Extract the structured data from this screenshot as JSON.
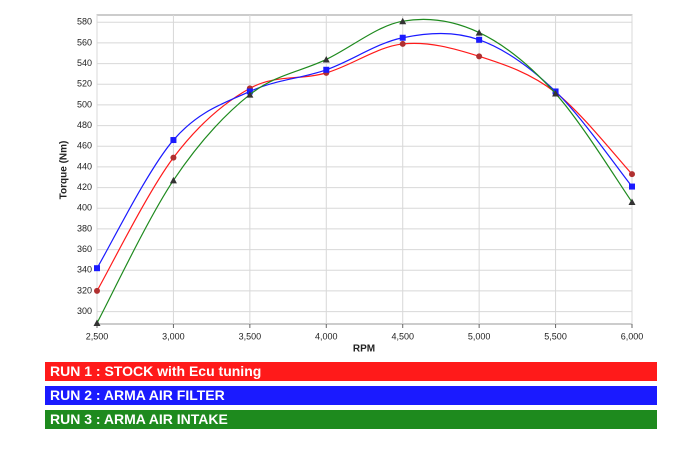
{
  "chart_data": {
    "type": "line",
    "x_label": "RPM",
    "y_label": "Torque (Nm)",
    "x": [
      2500,
      3000,
      3500,
      4000,
      4500,
      5000,
      5500,
      6000
    ],
    "series": [
      {
        "name": "RUN 1 : STOCK with Ecu tuning",
        "color": "#ff1a1a",
        "marker": "circle",
        "values": [
          320,
          449,
          516,
          531,
          559,
          547,
          512,
          433
        ]
      },
      {
        "name": "RUN 2 : ARMA AIR FILTER",
        "color": "#1a1aff",
        "marker": "square",
        "values": [
          342,
          466,
          513,
          534,
          565,
          563,
          513,
          421
        ]
      },
      {
        "name": "RUN 3 : ARMA AIR INTAKE",
        "color": "#1e8a1e",
        "marker": "triangle",
        "values": [
          289,
          427,
          510,
          544,
          581,
          570,
          511,
          406
        ]
      }
    ],
    "xlim": [
      2500,
      6000
    ],
    "xticks": [
      {
        "value": 2500,
        "label": "2,500"
      },
      {
        "value": 3000,
        "label": "3,000"
      },
      {
        "value": 3500,
        "label": "3,500"
      },
      {
        "value": 4000,
        "label": "4,000"
      },
      {
        "value": 4500,
        "label": "4,500"
      },
      {
        "value": 5000,
        "label": "5,000"
      },
      {
        "value": 5500,
        "label": "5,500"
      },
      {
        "value": 6000,
        "label": "6,000"
      }
    ],
    "ylim": [
      288,
      587
    ],
    "yticks": [
      300,
      320,
      340,
      360,
      380,
      400,
      420,
      440,
      460,
      480,
      500,
      520,
      540,
      560,
      580
    ],
    "grid": true
  }
}
